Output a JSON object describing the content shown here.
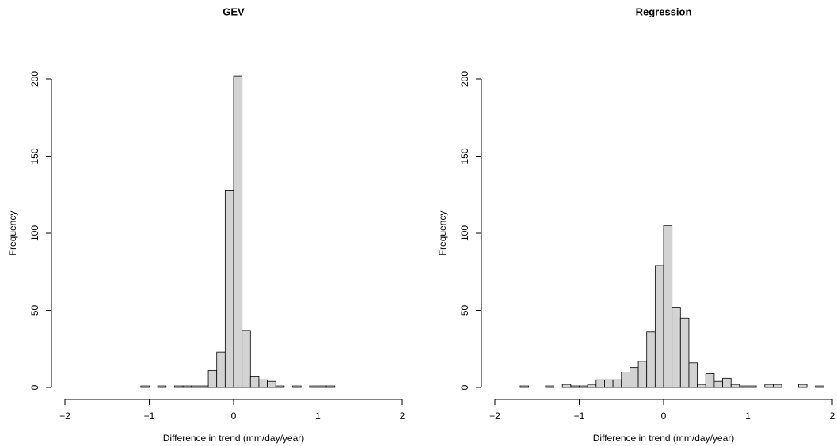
{
  "chart_data": [
    {
      "type": "histogram",
      "title": "GEV",
      "xlabel": "Difference in trend (mm/day/year)",
      "ylabel": "Frequency",
      "color": "#d3d3d3",
      "bins": [
        -2,
        -1.9,
        -1.8,
        -1.7,
        -1.6,
        -1.5,
        -1.4,
        -1.3,
        -1.2,
        -1.1,
        -1,
        -0.9,
        -0.8,
        -0.7,
        -0.6,
        -0.5,
        -0.4,
        -0.3,
        -0.2,
        -0.1,
        0,
        0.1,
        0.2,
        0.3,
        0.4,
        0.5,
        0.6,
        0.7,
        0.8,
        0.9,
        1,
        1.1,
        1.2,
        1.3,
        1.4,
        1.5,
        1.6,
        1.7,
        1.8,
        1.9,
        2
      ],
      "values": [
        0,
        0,
        0,
        0,
        0,
        0,
        0,
        0,
        0,
        1,
        0,
        1,
        0,
        1,
        1,
        1,
        1,
        11,
        23,
        128,
        202,
        37,
        7,
        5,
        4,
        1,
        0,
        1,
        0,
        1,
        1,
        1,
        0,
        0,
        0,
        0,
        0,
        0,
        0,
        0
      ],
      "xlim": [
        -2,
        2
      ],
      "ylim": [
        0,
        200
      ],
      "xticks": [
        {
          "value": -2,
          "label": "−2"
        },
        {
          "value": -1,
          "label": "−1"
        },
        0,
        1,
        2
      ],
      "yticks": [
        0,
        50,
        100,
        150,
        200
      ]
    },
    {
      "type": "histogram",
      "title": "Regression",
      "xlabel": "Difference in trend (mm/day/year)",
      "ylabel": "Frequency",
      "color": "#d3d3d3",
      "bins": [
        -2,
        -1.9,
        -1.8,
        -1.7,
        -1.6,
        -1.5,
        -1.4,
        -1.3,
        -1.2,
        -1.1,
        -1,
        -0.9,
        -0.8,
        -0.7,
        -0.6,
        -0.5,
        -0.4,
        -0.3,
        -0.2,
        -0.1,
        0,
        0.1,
        0.2,
        0.3,
        0.4,
        0.5,
        0.6,
        0.7,
        0.8,
        0.9,
        1,
        1.1,
        1.2,
        1.3,
        1.4,
        1.5,
        1.6,
        1.7,
        1.8,
        1.9
      ],
      "values": [
        0,
        0,
        0,
        1,
        0,
        0,
        1,
        0,
        2,
        1,
        1,
        2,
        5,
        5,
        5,
        10,
        13,
        17,
        36,
        79,
        105,
        52,
        45,
        16,
        2,
        9,
        4,
        6,
        2,
        1,
        1,
        0,
        2,
        2,
        0,
        0,
        2,
        0,
        1
      ],
      "xlim": [
        -2,
        2
      ],
      "ylim": [
        0,
        200
      ],
      "xticks": [
        {
          "value": -2,
          "label": "−2"
        },
        {
          "value": -1,
          "label": "−1"
        },
        0,
        1,
        2
      ],
      "yticks": [
        0,
        50,
        100,
        150,
        200
      ]
    }
  ]
}
